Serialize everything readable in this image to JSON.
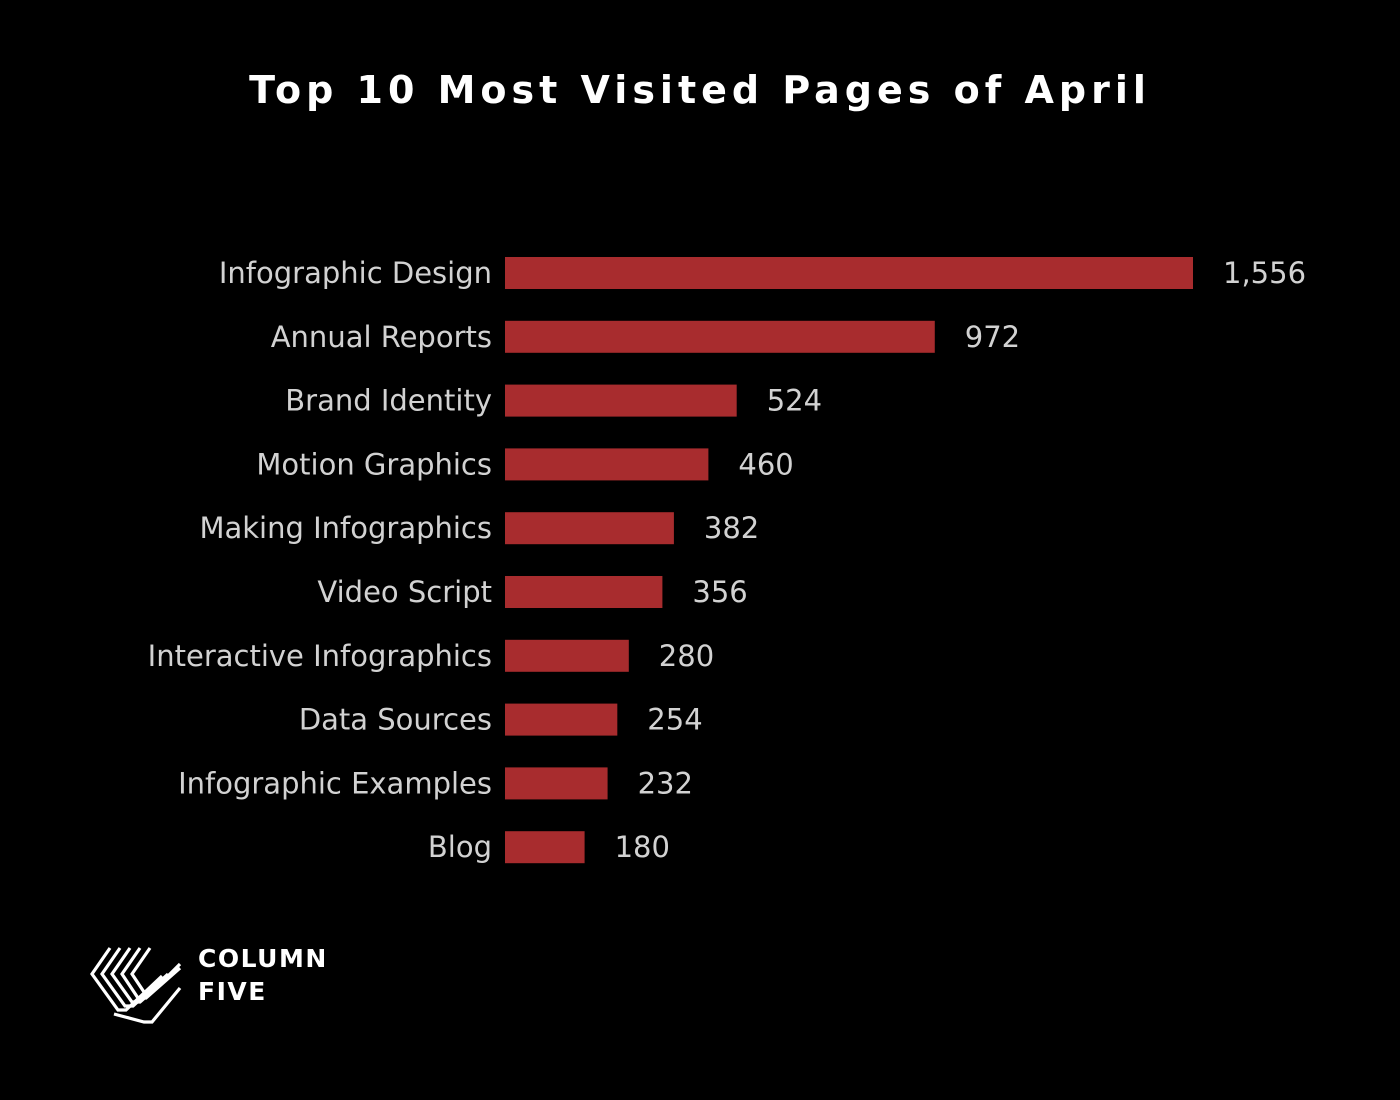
{
  "chart_data": {
    "type": "bar",
    "orientation": "horizontal",
    "title": "Top 10 Most Visited Pages of April",
    "categories": [
      "Infographic Design",
      "Annual Reports",
      "Brand Identity",
      "Motion Graphics",
      "Making Infographics",
      "Video Script",
      "Interactive Infographics",
      "Data Sources",
      "Infographic Examples",
      "Blog"
    ],
    "values": [
      1556,
      972,
      524,
      460,
      382,
      356,
      280,
      254,
      232,
      180
    ],
    "value_labels": [
      "1,556",
      "972",
      "524",
      "460",
      "382",
      "356",
      "280",
      "254",
      "232",
      "180"
    ],
    "xlim": [
      0,
      1556
    ],
    "bar_color": "#a82c2e",
    "grid": false,
    "legend": "none"
  },
  "logo": {
    "icon": "column-five-logo-icon",
    "line1": "COLUMN",
    "line2": "FIVE"
  },
  "colors": {
    "background": "#000000",
    "title": "#ffffff",
    "labels": "#d2d2d2",
    "bar": "#a82c2e"
  }
}
